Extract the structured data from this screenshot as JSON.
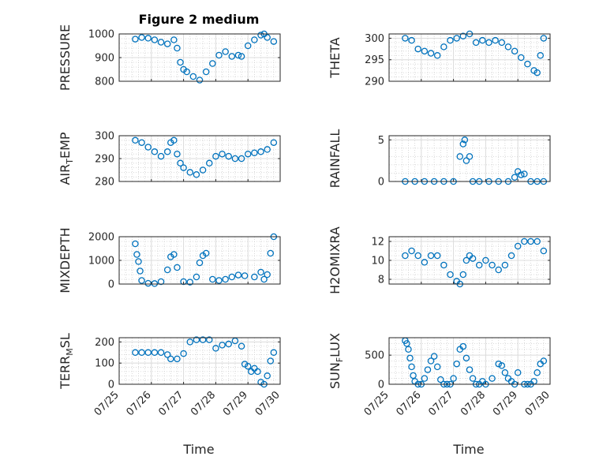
{
  "figure": {
    "title": "Figure 2 medium",
    "xlabel": "Time"
  },
  "colors": {
    "marker": "#0072BD",
    "axis": "#262626",
    "grid": "#cfcfcf"
  },
  "chart_data": [
    {
      "type": "scatter",
      "ylabel": "PRESSURE",
      "ylim": [
        800,
        1000
      ],
      "yticks": [
        800,
        900,
        1000
      ],
      "yminor": 20,
      "grid": true,
      "x": [
        0.5,
        0.7,
        0.9,
        1.1,
        1.3,
        1.5,
        1.7,
        1.8,
        1.9,
        2.0,
        2.1,
        2.3,
        2.5,
        2.7,
        2.9,
        3.1,
        3.3,
        3.5,
        3.7,
        3.8,
        4.0,
        4.2,
        4.4,
        4.5,
        4.6,
        4.8
      ],
      "y": [
        978,
        985,
        982,
        975,
        965,
        958,
        975,
        940,
        880,
        850,
        840,
        820,
        805,
        840,
        875,
        910,
        925,
        905,
        910,
        905,
        950,
        975,
        995,
        1000,
        985,
        968
      ]
    },
    {
      "type": "scatter",
      "ylabel": "THETA",
      "ylim": [
        290,
        301
      ],
      "yticks": [
        290,
        295,
        300
      ],
      "yminor": 1,
      "grid": true,
      "x": [
        0.5,
        0.7,
        0.9,
        1.1,
        1.3,
        1.5,
        1.7,
        1.9,
        2.1,
        2.3,
        2.5,
        2.7,
        2.9,
        3.1,
        3.3,
        3.5,
        3.7,
        3.9,
        4.1,
        4.3,
        4.5,
        4.6,
        4.7,
        4.8
      ],
      "y": [
        300,
        299.5,
        297.5,
        297,
        296.5,
        296,
        298,
        299.5,
        300,
        300.5,
        301,
        299,
        299.5,
        299,
        299.5,
        299,
        298,
        297,
        295.5,
        294,
        292.5,
        292,
        296,
        300
      ]
    },
    {
      "type": "scatter",
      "ylabel": "AIR_TEMP",
      "ylabel_parts": [
        "AIR",
        "T",
        "EMP"
      ],
      "ylim": [
        280,
        300
      ],
      "yticks": [
        280,
        290,
        300
      ],
      "yminor": 2,
      "grid": true,
      "x": [
        0.5,
        0.7,
        0.9,
        1.1,
        1.3,
        1.5,
        1.6,
        1.7,
        1.8,
        1.9,
        2.0,
        2.2,
        2.4,
        2.6,
        2.8,
        3.0,
        3.2,
        3.4,
        3.6,
        3.8,
        4.0,
        4.2,
        4.4,
        4.6,
        4.8
      ],
      "y": [
        298,
        297,
        295,
        293,
        291,
        293,
        297,
        298,
        292,
        288,
        286,
        284,
        283,
        285,
        288,
        291,
        292,
        291,
        290,
        290,
        292,
        292.5,
        293,
        294,
        297
      ]
    },
    {
      "type": "scatter",
      "ylabel": "RAINFALL",
      "ylim": [
        0,
        5.5
      ],
      "yticks": [
        0,
        5
      ],
      "yminor": 1,
      "grid": true,
      "x": [
        0.5,
        0.8,
        1.1,
        1.4,
        1.7,
        2.0,
        2.2,
        2.3,
        2.35,
        2.4,
        2.5,
        2.6,
        2.8,
        3.1,
        3.4,
        3.7,
        3.9,
        4.0,
        4.1,
        4.2,
        4.4,
        4.6,
        4.8
      ],
      "y": [
        0,
        0,
        0,
        0,
        0,
        0,
        3,
        4.5,
        5,
        2.5,
        3,
        0,
        0,
        0,
        0,
        0,
        0.5,
        1.2,
        0.8,
        0.9,
        0,
        0,
        0
      ]
    },
    {
      "type": "scatter",
      "ylabel": "MIXDEPTH",
      "ylim": [
        0,
        2000
      ],
      "yticks": [
        0,
        1000,
        2000
      ],
      "yminor": 200,
      "grid": true,
      "x": [
        0.5,
        0.55,
        0.6,
        0.65,
        0.7,
        0.9,
        1.1,
        1.3,
        1.5,
        1.6,
        1.7,
        1.8,
        2.0,
        2.2,
        2.4,
        2.5,
        2.6,
        2.7,
        2.9,
        3.1,
        3.3,
        3.5,
        3.7,
        3.9,
        4.2,
        4.4,
        4.5,
        4.6,
        4.7,
        4.8
      ],
      "y": [
        1700,
        1250,
        950,
        550,
        150,
        30,
        20,
        100,
        600,
        1150,
        1250,
        700,
        100,
        80,
        300,
        900,
        1200,
        1300,
        200,
        150,
        200,
        300,
        380,
        350,
        300,
        500,
        200,
        400,
        1300,
        2000
      ]
    },
    {
      "type": "scatter",
      "ylabel": "H2OMIXRA",
      "ylim": [
        7.5,
        12.5
      ],
      "yticks": [
        8,
        10,
        12
      ],
      "yminor": 0.5,
      "grid": true,
      "x": [
        0.5,
        0.7,
        0.9,
        1.1,
        1.3,
        1.5,
        1.7,
        1.9,
        2.1,
        2.2,
        2.3,
        2.4,
        2.5,
        2.6,
        2.8,
        3.0,
        3.2,
        3.4,
        3.6,
        3.8,
        4.0,
        4.2,
        4.4,
        4.6,
        4.8
      ],
      "y": [
        10.5,
        11,
        10.5,
        9.8,
        10.5,
        10.5,
        9.5,
        8.5,
        7.8,
        7.5,
        8.5,
        10,
        10.5,
        10.2,
        9.5,
        10,
        9.5,
        9,
        9.5,
        10.5,
        11.5,
        12,
        12,
        12,
        11
      ]
    },
    {
      "type": "scatter",
      "ylabel": "TERR_MSL",
      "ylabel_parts": [
        "TERR",
        "M",
        "SL"
      ],
      "ylim": [
        0,
        220
      ],
      "yticks": [
        0,
        100,
        200
      ],
      "yminor": 20,
      "grid": true,
      "x": [
        0.5,
        0.7,
        0.9,
        1.1,
        1.3,
        1.5,
        1.6,
        1.8,
        2.0,
        2.2,
        2.4,
        2.6,
        2.8,
        3.0,
        3.2,
        3.4,
        3.6,
        3.8,
        3.9,
        4.0,
        4.1,
        4.2,
        4.3,
        4.4,
        4.5,
        4.6,
        4.7,
        4.8
      ],
      "y": [
        150,
        150,
        150,
        150,
        150,
        140,
        120,
        120,
        145,
        200,
        210,
        210,
        210,
        170,
        185,
        190,
        205,
        180,
        95,
        85,
        60,
        75,
        60,
        10,
        0,
        40,
        110,
        150
      ]
    },
    {
      "type": "scatter",
      "ylabel": "SUN_FLUX",
      "ylabel_parts": [
        "SUN",
        "F",
        "LUX"
      ],
      "ylim": [
        0,
        800
      ],
      "yticks": [
        0,
        500
      ],
      "yminor": 100,
      "grid": true,
      "x": [
        0.5,
        0.55,
        0.6,
        0.65,
        0.7,
        0.75,
        0.8,
        0.9,
        1.0,
        1.1,
        1.2,
        1.3,
        1.4,
        1.5,
        1.6,
        1.7,
        1.8,
        1.9,
        2.0,
        2.1,
        2.2,
        2.3,
        2.4,
        2.5,
        2.6,
        2.7,
        2.8,
        2.9,
        3.0,
        3.2,
        3.4,
        3.5,
        3.6,
        3.7,
        3.8,
        3.9,
        4.0,
        4.2,
        4.3,
        4.4,
        4.5,
        4.6,
        4.7,
        4.8
      ],
      "y": [
        750,
        700,
        600,
        450,
        300,
        150,
        50,
        0,
        0,
        100,
        250,
        400,
        480,
        300,
        80,
        0,
        0,
        0,
        100,
        350,
        600,
        650,
        450,
        250,
        100,
        0,
        0,
        50,
        0,
        100,
        350,
        320,
        200,
        100,
        50,
        0,
        200,
        0,
        0,
        0,
        50,
        200,
        350,
        400
      ]
    }
  ],
  "shared_x": {
    "type": "date",
    "labels": [
      "07/25",
      "07/26",
      "07/27",
      "07/28",
      "07/29",
      "07/30"
    ],
    "xlim": [
      0,
      5
    ]
  }
}
